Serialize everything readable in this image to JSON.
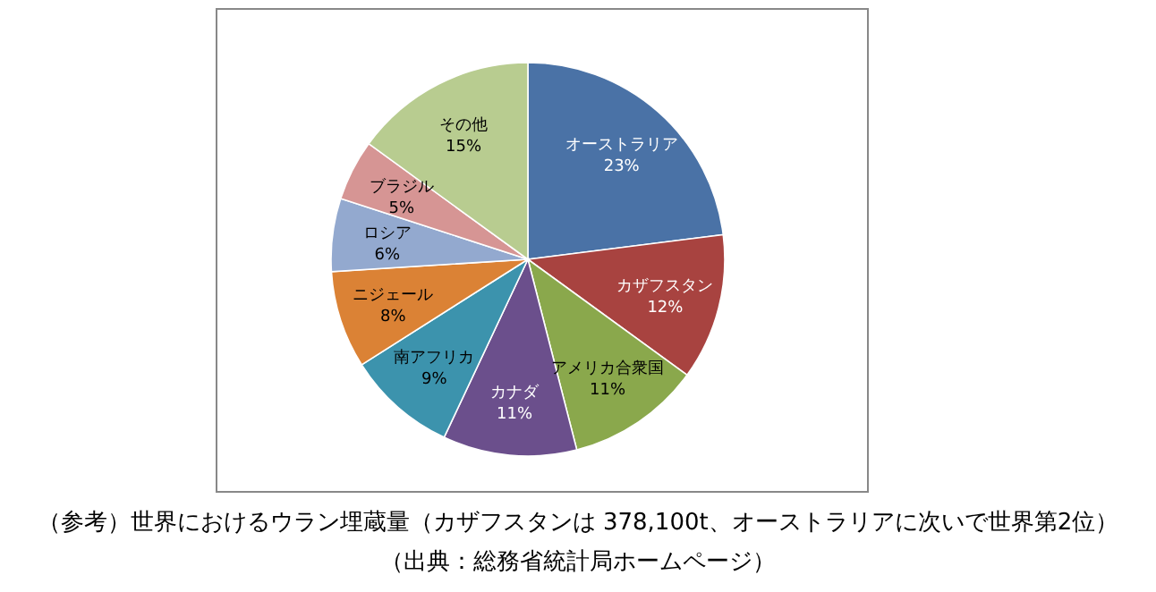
{
  "chart_data": {
    "type": "pie",
    "categories": [
      "オーストラリア",
      "カザフスタン",
      "アメリカ合衆国",
      "カナダ",
      "南アフリカ",
      "ニジェール",
      "ロシア",
      "ブラジル",
      "その他"
    ],
    "values": [
      23,
      12,
      11,
      11,
      9,
      8,
      6,
      5,
      15
    ],
    "value_labels": [
      "23%",
      "12%",
      "11%",
      "11%",
      "9%",
      "8%",
      "6%",
      "5%",
      "15%"
    ],
    "colors": [
      "#4a72a6",
      "#a84340",
      "#8aa84c",
      "#6b4f8c",
      "#3c93ad",
      "#db8235",
      "#93a9cf",
      "#d69594",
      "#b8cc90"
    ],
    "legend": false,
    "annotations": [
      "（参考）世界におけるウラン埋蔵量（カザフスタンは 378,100t、オーストラリアに次いで世界第2位）",
      "（出典：総務省統計局ホームページ）"
    ]
  }
}
